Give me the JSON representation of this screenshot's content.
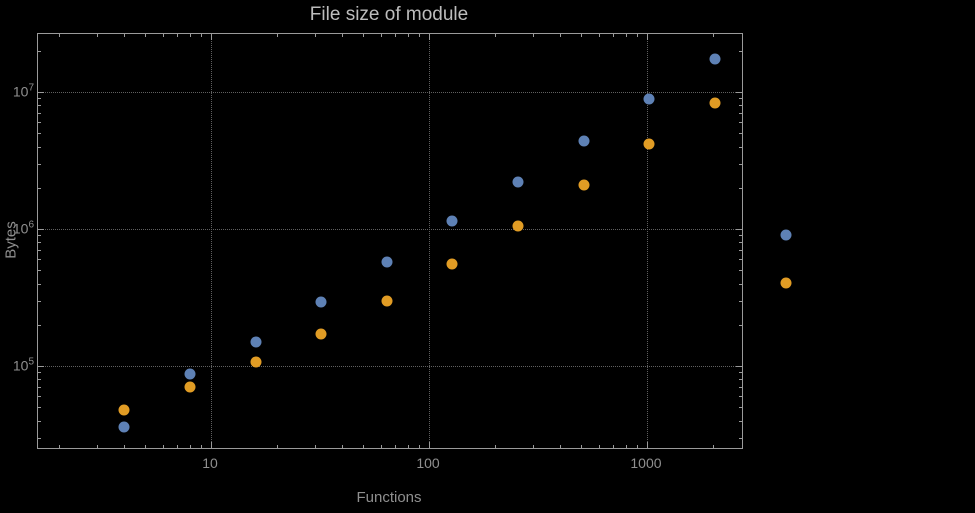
{
  "chart_data": {
    "type": "scatter",
    "title": "File size of module",
    "xlabel": "Functions",
    "ylabel": "Bytes",
    "x_scale": "log",
    "y_scale": "log",
    "x": [
      4,
      8,
      16,
      32,
      64,
      128,
      256,
      512,
      1024,
      2048
    ],
    "series": [
      {
        "name": "blue",
        "color": "#5e81b5",
        "values": [
          36000,
          87000,
          150000,
          295000,
          570000,
          1150000,
          2200000,
          4400000,
          8900000,
          17500000
        ]
      },
      {
        "name": "orange",
        "color": "#e19c24",
        "values": [
          48000,
          70000,
          107000,
          170000,
          300000,
          560000,
          1050000,
          2100000,
          4200000,
          8300000
        ]
      }
    ],
    "x_ticks": [
      {
        "value": 10,
        "label": "10"
      },
      {
        "value": 100,
        "label": "100"
      },
      {
        "value": 1000,
        "label": "1000"
      }
    ],
    "y_ticks": [
      {
        "value": 100000,
        "base": "10",
        "exponent": "5"
      },
      {
        "value": 1000000,
        "base": "10",
        "exponent": "6"
      },
      {
        "value": 10000000,
        "base": "10",
        "exponent": "7"
      }
    ],
    "axes": {
      "x_log_range": [
        0.206,
        3.436
      ],
      "y_log_range": [
        4.402,
        7.423
      ]
    },
    "grid": "dotted-at-major-ticks",
    "legend": {
      "position": "right-of-frame",
      "markers": [
        {
          "series": "blue"
        },
        {
          "series": "orange"
        }
      ]
    }
  },
  "colors": {
    "background": "#000000",
    "frame": "#9a9a9a",
    "grid": "#606060",
    "title_text": "#bdbdbd",
    "tick_text": "#8f8f8f"
  }
}
